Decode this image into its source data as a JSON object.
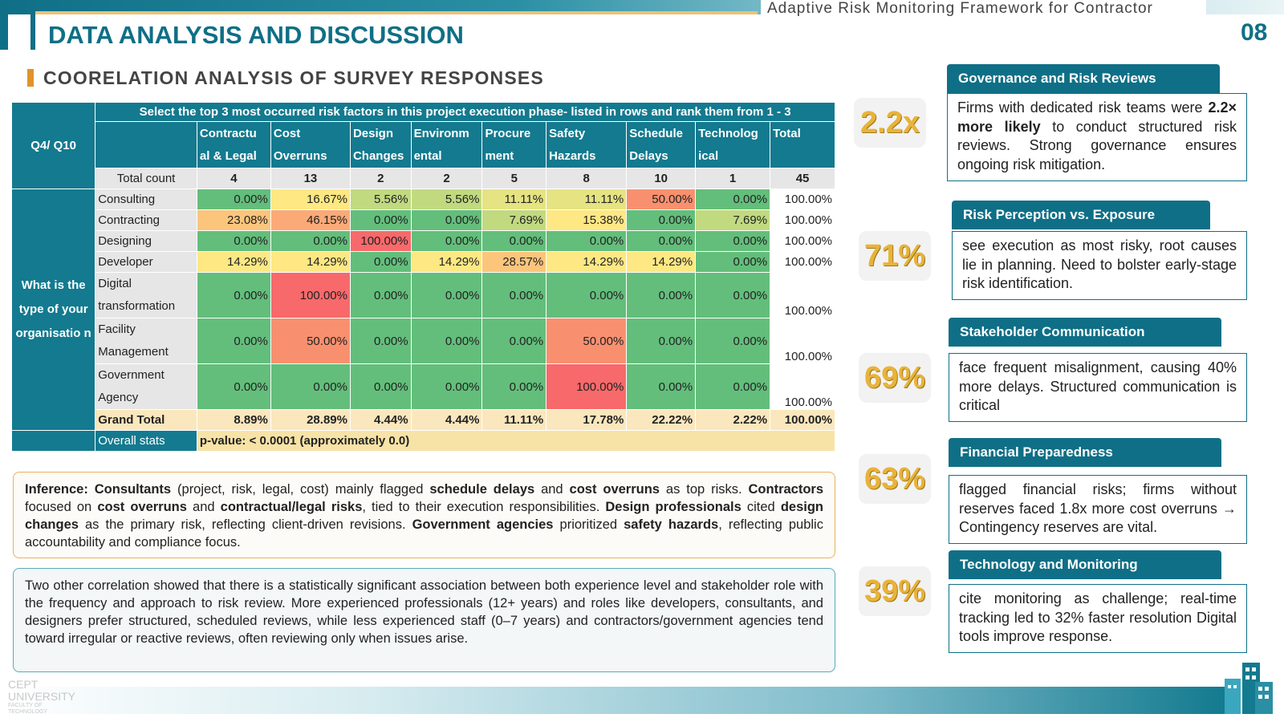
{
  "header": {
    "tagline": "Adaptive Risk Monitoring Framework for Contractor",
    "title": "DATA ANALYSIS AND DISCUSSION",
    "page_number": "08",
    "subtitle": "COORELATION ANALYSIS OF SURVEY RESPONSES"
  },
  "table": {
    "question_code": "Q4/ Q10",
    "question_text": "Select the top 3 most occurred risk factors in this project execution phase- listed in rows and rank them from 1 - 3",
    "row_question": "What is the type of your organisatio n",
    "columns": [
      "Contractu al & Legal",
      "Cost Overruns",
      "Design Changes",
      "Environm ental",
      "Procure ment",
      "Safety Hazards",
      "Schedule Delays",
      "Technolog ical",
      "Total"
    ],
    "total_count_label": "Total count",
    "total_count": [
      "4",
      "13",
      "2",
      "2",
      "5",
      "8",
      "10",
      "1",
      "45"
    ],
    "rows": [
      {
        "label": "Consulting",
        "values": [
          "0.00%",
          "16.67%",
          "5.56%",
          "5.56%",
          "11.11%",
          "11.11%",
          "50.00%",
          "0.00%",
          "100.00%"
        ]
      },
      {
        "label": "Contracting",
        "values": [
          "23.08%",
          "46.15%",
          "0.00%",
          "0.00%",
          "7.69%",
          "15.38%",
          "0.00%",
          "7.69%",
          "100.00%"
        ]
      },
      {
        "label": "Designing",
        "values": [
          "0.00%",
          "0.00%",
          "100.00%",
          "0.00%",
          "0.00%",
          "0.00%",
          "0.00%",
          "0.00%",
          "100.00%"
        ]
      },
      {
        "label": "Developer",
        "values": [
          "14.29%",
          "14.29%",
          "0.00%",
          "14.29%",
          "28.57%",
          "14.29%",
          "14.29%",
          "0.00%",
          "100.00%"
        ]
      },
      {
        "label": "Digital transformation",
        "values": [
          "0.00%",
          "100.00%",
          "0.00%",
          "0.00%",
          "0.00%",
          "0.00%",
          "0.00%",
          "0.00%",
          "100.00%"
        ]
      },
      {
        "label": "Facility Management",
        "values": [
          "0.00%",
          "50.00%",
          "0.00%",
          "0.00%",
          "0.00%",
          "50.00%",
          "0.00%",
          "0.00%",
          "100.00%"
        ]
      },
      {
        "label": "Government Agency",
        "values": [
          "0.00%",
          "0.00%",
          "0.00%",
          "0.00%",
          "0.00%",
          "100.00%",
          "0.00%",
          "0.00%",
          "100.00%"
        ]
      }
    ],
    "grand_total_label": "Grand Total",
    "grand_total": [
      "8.89%",
      "28.89%",
      "4.44%",
      "4.44%",
      "11.11%",
      "17.78%",
      "22.22%",
      "2.22%",
      "100.00%"
    ],
    "overall_stats_label": "Overall stats",
    "overall_stats_value": "p-value: < 0.0001 (approximately 0.0)",
    "heat_colors": {
      "green": "#63be7b",
      "light_green": "#a9d27f",
      "yellow": "#fde883",
      "orange": "#fbaa77",
      "salmon": "#f8906f",
      "red": "#f8696b"
    }
  },
  "inference": {
    "p1": "Inference:",
    "p2": " Consultants",
    "p3": " (project, risk, legal, cost) mainly flagged ",
    "p4": "schedule delays",
    "p5": " and ",
    "p6": "cost overruns",
    "p7": " as top risks. ",
    "p8": "Contractors",
    "p9": " focused on ",
    "p10": "cost overruns",
    "p11": " and ",
    "p12": "contractual/legal risks",
    "p13": ", tied to their execution responsibilities. ",
    "p14": "Design professionals",
    "p15": " cited ",
    "p16": "design changes",
    "p17": " as the primary risk, reflecting client-driven revisions. ",
    "p18": "Government agencies",
    "p19": " prioritized ",
    "p20": "safety hazards",
    "p21": ", reflecting public accountability and compliance focus."
  },
  "correlation_text": "Two other correlation showed that there is a statistically significant association between both experience level and stakeholder role with the frequency and approach to risk review. More experienced professionals (12+ years) and roles like developers, consultants, and designers prefer structured, scheduled reviews, while less experienced staff (0–7 years) and contractors/government agencies tend toward irregular or reactive reviews, often reviewing only when issues arise.",
  "cards": [
    {
      "stat": "2.2x",
      "title": "Governance and Risk Reviews",
      "pre": "Firms with dedicated risk teams were ",
      "bold": "2.2× more likely",
      "post": " to conduct structured risk reviews. Strong governance ensures ongoing risk mitigation."
    },
    {
      "stat": "71%",
      "title": "Risk Perception vs. Exposure",
      "pre": "see execution as most risky, root causes lie in planning. Need to bolster early-stage risk identification.",
      "bold": "",
      "post": ""
    },
    {
      "stat": "69%",
      "title": "Stakeholder Communication",
      "pre": "face frequent misalignment, causing 40% more delays. Structured communication is critical",
      "bold": "",
      "post": ""
    },
    {
      "stat": "63%",
      "title": "Financial Preparedness",
      "pre": "flagged financial risks; firms without reserves faced 1.8x more cost overruns → Contingency reserves are vital.",
      "bold": "",
      "post": ""
    },
    {
      "stat": "39%",
      "title": "Technology and Monitoring",
      "pre": "cite monitoring as  challenge; real-time tracking led to 32% faster resolution Digital tools improve response.",
      "bold": "",
      "post": ""
    }
  ],
  "footer": {
    "logo_line1": "CEPT",
    "logo_line2": "UNIVERSITY",
    "logo_line3": "FACULTY OF TECHNOLOGY",
    "icon": "building-icon"
  }
}
